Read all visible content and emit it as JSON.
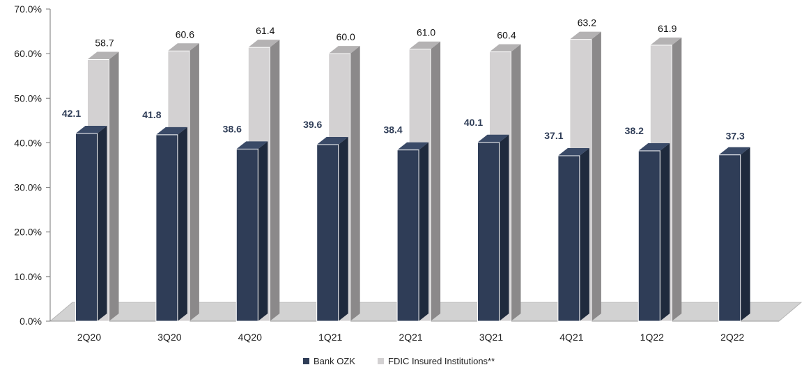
{
  "chart_data": {
    "type": "bar",
    "categories": [
      "2Q20",
      "3Q20",
      "4Q20",
      "1Q21",
      "2Q21",
      "3Q21",
      "4Q21",
      "1Q22",
      "2Q22"
    ],
    "series": [
      {
        "name": "Bank OZK",
        "values": [
          42.1,
          41.8,
          38.6,
          39.6,
          38.4,
          40.1,
          37.1,
          38.2,
          37.3
        ],
        "labels": [
          "42.1",
          "41.8",
          "38.6",
          "39.6",
          "38.4",
          "40.1",
          "37.1",
          "38.2",
          "37.3"
        ]
      },
      {
        "name": "FDIC Insured Institutions**",
        "values": [
          58.7,
          60.6,
          61.4,
          60.0,
          61.0,
          60.4,
          63.2,
          61.9,
          null
        ],
        "labels": [
          "58.7",
          "60.6",
          "61.4",
          "60.0",
          "61.0",
          "60.4",
          "63.2",
          "61.9",
          ""
        ]
      }
    ],
    "ylim": [
      0,
      70
    ],
    "yticks": [
      "0.0%",
      "10.0%",
      "20.0%",
      "30.0%",
      "40.0%",
      "50.0%",
      "60.0%",
      "70.0%"
    ],
    "legend_position": "bottom",
    "colors": {
      "bank": "#2f3d57",
      "fdic": "#d3d1d2"
    }
  }
}
